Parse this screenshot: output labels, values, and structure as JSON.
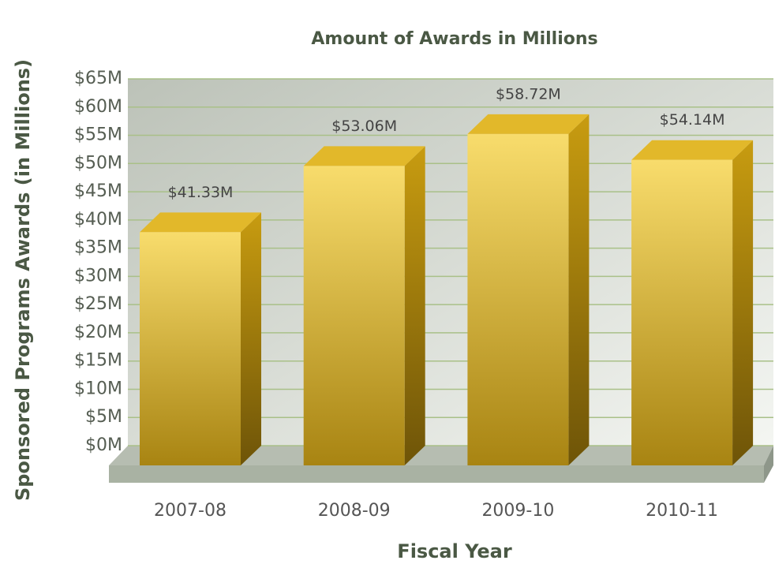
{
  "chart_data": {
    "type": "bar",
    "title": "Amount of Awards in Millions",
    "x_label": "Fiscal Year",
    "y_label": "Sponsored Programs Awards (in Millions)",
    "categories": [
      "2007-08",
      "2008-09",
      "2009-10",
      "2010-11"
    ],
    "values": [
      41.33,
      53.06,
      58.72,
      54.14
    ],
    "value_labels": [
      "$41.33M",
      "$53.06M",
      "$58.72M",
      "$54.14M"
    ],
    "color": "#e2b82a",
    "ylim": [
      0,
      65
    ],
    "yticks": [
      {
        "value": 0,
        "label": "$0M"
      },
      {
        "value": 5,
        "label": "$5M"
      },
      {
        "value": 10,
        "label": "$10M"
      },
      {
        "value": 15,
        "label": "$15M"
      },
      {
        "value": 20,
        "label": "$20M"
      },
      {
        "value": 25,
        "label": "$25M"
      },
      {
        "value": 30,
        "label": "$30M"
      },
      {
        "value": 35,
        "label": "$35M"
      },
      {
        "value": 40,
        "label": "$40M"
      },
      {
        "value": 45,
        "label": "$45M"
      },
      {
        "value": 50,
        "label": "$50M"
      },
      {
        "value": 55,
        "label": "$55M"
      },
      {
        "value": 60,
        "label": "$60M"
      },
      {
        "value": 65,
        "label": "$65M"
      }
    ],
    "grid": true
  }
}
